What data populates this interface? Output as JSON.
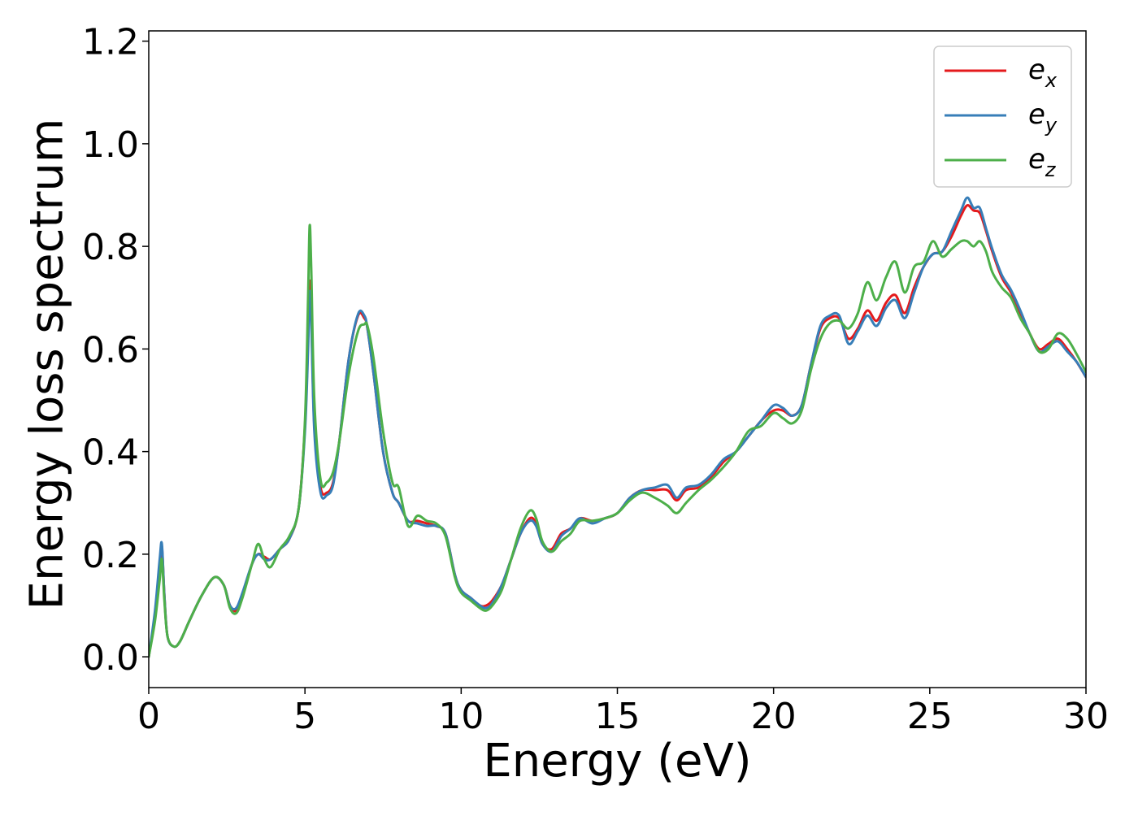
{
  "chart_data": {
    "type": "line",
    "title": "",
    "xlabel": "Energy (eV)",
    "ylabel": "Energy loss spectrum",
    "xlim": [
      0,
      30
    ],
    "ylim": [
      -0.06,
      1.22
    ],
    "xticks": [
      {
        "value": 0,
        "label": "0"
      },
      {
        "value": 5,
        "label": "5"
      },
      {
        "value": 10,
        "label": "10"
      },
      {
        "value": 15,
        "label": "15"
      },
      {
        "value": 20,
        "label": "20"
      },
      {
        "value": 25,
        "label": "25"
      },
      {
        "value": 30,
        "label": "30"
      }
    ],
    "yticks": [
      {
        "value": 0.0,
        "label": "0.0"
      },
      {
        "value": 0.2,
        "label": "0.2"
      },
      {
        "value": 0.4,
        "label": "0.4"
      },
      {
        "value": 0.6,
        "label": "0.6"
      },
      {
        "value": 0.8,
        "label": "0.8"
      },
      {
        "value": 1.0,
        "label": "1.0"
      },
      {
        "value": 1.2,
        "label": "1.2"
      }
    ],
    "grid": false,
    "legend_position": "top-right",
    "series": [
      {
        "name": "e_x",
        "base": "e",
        "sub": "x",
        "color": "#e41a1c",
        "x": [
          0,
          0.2,
          0.35,
          0.42,
          0.5,
          0.6,
          0.8,
          1.0,
          1.3,
          1.7,
          2.1,
          2.4,
          2.6,
          2.8,
          3.0,
          3.3,
          3.5,
          3.7,
          3.9,
          4.2,
          4.5,
          4.8,
          5.0,
          5.1,
          5.15,
          5.2,
          5.3,
          5.5,
          5.7,
          5.9,
          6.1,
          6.4,
          6.7,
          6.9,
          7.0,
          7.2,
          7.5,
          7.8,
          8.0,
          8.3,
          8.6,
          8.9,
          9.2,
          9.5,
          9.8,
          10.0,
          10.3,
          10.6,
          10.8,
          11.0,
          11.3,
          11.6,
          11.9,
          12.2,
          12.4,
          12.6,
          12.9,
          13.2,
          13.5,
          13.8,
          14.2,
          14.6,
          15.0,
          15.4,
          15.8,
          16.2,
          16.6,
          16.9,
          17.2,
          17.6,
          18.0,
          18.4,
          18.8,
          19.2,
          19.6,
          20.0,
          20.3,
          20.6,
          20.9,
          21.2,
          21.5,
          21.8,
          22.1,
          22.4,
          22.7,
          23.0,
          23.3,
          23.6,
          23.9,
          24.2,
          24.5,
          24.8,
          25.1,
          25.4,
          25.7,
          26.0,
          26.2,
          26.4,
          26.6,
          26.8,
          27.0,
          27.3,
          27.6,
          27.9,
          28.2,
          28.5,
          28.8,
          29.1,
          29.4,
          29.7,
          30.0
        ],
        "y": [
          0.0,
          0.08,
          0.18,
          0.215,
          0.12,
          0.04,
          0.02,
          0.03,
          0.07,
          0.12,
          0.155,
          0.14,
          0.1,
          0.09,
          0.12,
          0.18,
          0.2,
          0.195,
          0.19,
          0.21,
          0.23,
          0.29,
          0.45,
          0.62,
          0.73,
          0.68,
          0.45,
          0.33,
          0.32,
          0.34,
          0.42,
          0.58,
          0.665,
          0.66,
          0.64,
          0.55,
          0.4,
          0.32,
          0.3,
          0.265,
          0.265,
          0.26,
          0.255,
          0.24,
          0.16,
          0.13,
          0.115,
          0.1,
          0.1,
          0.11,
          0.14,
          0.19,
          0.24,
          0.27,
          0.26,
          0.22,
          0.21,
          0.24,
          0.25,
          0.27,
          0.265,
          0.27,
          0.28,
          0.31,
          0.325,
          0.325,
          0.325,
          0.305,
          0.325,
          0.33,
          0.35,
          0.38,
          0.4,
          0.43,
          0.46,
          0.48,
          0.48,
          0.47,
          0.49,
          0.57,
          0.64,
          0.66,
          0.66,
          0.62,
          0.64,
          0.675,
          0.655,
          0.69,
          0.705,
          0.67,
          0.72,
          0.76,
          0.785,
          0.79,
          0.82,
          0.86,
          0.88,
          0.87,
          0.865,
          0.83,
          0.79,
          0.74,
          0.71,
          0.67,
          0.63,
          0.6,
          0.61,
          0.62,
          0.6,
          0.575,
          0.545
        ]
      },
      {
        "name": "e_y",
        "base": "e",
        "sub": "y",
        "color": "#377eb8",
        "x": [
          0,
          0.2,
          0.35,
          0.42,
          0.5,
          0.6,
          0.8,
          1.0,
          1.3,
          1.7,
          2.1,
          2.4,
          2.6,
          2.8,
          3.0,
          3.3,
          3.5,
          3.7,
          3.9,
          4.2,
          4.5,
          4.8,
          5.0,
          5.1,
          5.15,
          5.2,
          5.3,
          5.5,
          5.7,
          5.9,
          6.1,
          6.4,
          6.7,
          6.9,
          7.0,
          7.2,
          7.5,
          7.8,
          8.0,
          8.3,
          8.6,
          8.9,
          9.2,
          9.5,
          9.8,
          10.0,
          10.3,
          10.6,
          10.8,
          11.0,
          11.3,
          11.6,
          11.9,
          12.2,
          12.4,
          12.6,
          12.9,
          13.2,
          13.5,
          13.8,
          14.2,
          14.6,
          15.0,
          15.4,
          15.8,
          16.2,
          16.6,
          16.9,
          17.2,
          17.6,
          18.0,
          18.4,
          18.8,
          19.2,
          19.6,
          20.0,
          20.3,
          20.6,
          20.9,
          21.2,
          21.5,
          21.8,
          22.1,
          22.4,
          22.7,
          23.0,
          23.3,
          23.6,
          23.9,
          24.2,
          24.5,
          24.8,
          25.1,
          25.4,
          25.7,
          26.0,
          26.2,
          26.4,
          26.6,
          26.8,
          27.0,
          27.3,
          27.6,
          27.9,
          28.2,
          28.5,
          28.8,
          29.1,
          29.4,
          29.7,
          30.0
        ],
        "y": [
          0.0,
          0.09,
          0.19,
          0.22,
          0.12,
          0.04,
          0.02,
          0.03,
          0.07,
          0.12,
          0.155,
          0.14,
          0.1,
          0.095,
          0.125,
          0.18,
          0.2,
          0.19,
          0.19,
          0.21,
          0.23,
          0.29,
          0.44,
          0.6,
          0.71,
          0.66,
          0.44,
          0.32,
          0.315,
          0.335,
          0.42,
          0.58,
          0.668,
          0.665,
          0.64,
          0.55,
          0.4,
          0.32,
          0.3,
          0.265,
          0.26,
          0.255,
          0.255,
          0.24,
          0.16,
          0.13,
          0.115,
          0.1,
          0.095,
          0.105,
          0.14,
          0.19,
          0.24,
          0.265,
          0.255,
          0.22,
          0.205,
          0.235,
          0.25,
          0.27,
          0.26,
          0.27,
          0.28,
          0.31,
          0.325,
          0.33,
          0.335,
          0.31,
          0.33,
          0.335,
          0.355,
          0.385,
          0.4,
          0.43,
          0.46,
          0.49,
          0.485,
          0.47,
          0.49,
          0.57,
          0.645,
          0.665,
          0.665,
          0.61,
          0.635,
          0.665,
          0.645,
          0.68,
          0.695,
          0.66,
          0.71,
          0.76,
          0.785,
          0.79,
          0.83,
          0.87,
          0.895,
          0.875,
          0.875,
          0.835,
          0.795,
          0.745,
          0.715,
          0.675,
          0.63,
          0.595,
          0.605,
          0.615,
          0.595,
          0.575,
          0.545
        ]
      },
      {
        "name": "e_z",
        "base": "e",
        "sub": "z",
        "color": "#4daf4a",
        "x": [
          0,
          0.2,
          0.35,
          0.42,
          0.5,
          0.6,
          0.8,
          1.0,
          1.3,
          1.7,
          2.1,
          2.4,
          2.6,
          2.8,
          3.0,
          3.3,
          3.5,
          3.7,
          3.9,
          4.2,
          4.5,
          4.8,
          5.0,
          5.1,
          5.15,
          5.2,
          5.3,
          5.5,
          5.7,
          5.9,
          6.1,
          6.4,
          6.7,
          6.9,
          7.0,
          7.2,
          7.5,
          7.8,
          8.0,
          8.3,
          8.6,
          8.9,
          9.2,
          9.5,
          9.8,
          10.0,
          10.3,
          10.6,
          10.8,
          11.0,
          11.3,
          11.6,
          11.9,
          12.2,
          12.4,
          12.6,
          12.9,
          13.2,
          13.5,
          13.8,
          14.2,
          14.6,
          15.0,
          15.4,
          15.8,
          16.2,
          16.6,
          16.9,
          17.2,
          17.6,
          18.0,
          18.4,
          18.8,
          19.2,
          19.6,
          20.0,
          20.3,
          20.6,
          20.9,
          21.2,
          21.5,
          21.8,
          22.1,
          22.4,
          22.7,
          23.0,
          23.3,
          23.6,
          23.9,
          24.2,
          24.5,
          24.8,
          25.1,
          25.4,
          25.7,
          26.0,
          26.2,
          26.4,
          26.6,
          26.8,
          27.0,
          27.3,
          27.6,
          27.9,
          28.2,
          28.5,
          28.8,
          29.1,
          29.4,
          29.7,
          30.0
        ],
        "y": [
          0.0,
          0.07,
          0.15,
          0.19,
          0.11,
          0.04,
          0.02,
          0.03,
          0.07,
          0.12,
          0.155,
          0.14,
          0.095,
          0.085,
          0.115,
          0.18,
          0.22,
          0.19,
          0.175,
          0.21,
          0.235,
          0.29,
          0.46,
          0.7,
          0.84,
          0.76,
          0.5,
          0.345,
          0.34,
          0.36,
          0.42,
          0.55,
          0.635,
          0.648,
          0.645,
          0.58,
          0.44,
          0.34,
          0.33,
          0.255,
          0.275,
          0.265,
          0.26,
          0.235,
          0.155,
          0.125,
          0.11,
          0.095,
          0.09,
          0.1,
          0.13,
          0.19,
          0.25,
          0.285,
          0.27,
          0.225,
          0.205,
          0.225,
          0.24,
          0.265,
          0.265,
          0.27,
          0.28,
          0.305,
          0.32,
          0.31,
          0.295,
          0.28,
          0.3,
          0.325,
          0.345,
          0.37,
          0.4,
          0.44,
          0.45,
          0.475,
          0.465,
          0.455,
          0.48,
          0.56,
          0.62,
          0.65,
          0.655,
          0.64,
          0.67,
          0.73,
          0.695,
          0.74,
          0.77,
          0.71,
          0.76,
          0.77,
          0.81,
          0.78,
          0.795,
          0.81,
          0.81,
          0.8,
          0.81,
          0.79,
          0.75,
          0.72,
          0.7,
          0.66,
          0.63,
          0.595,
          0.6,
          0.63,
          0.62,
          0.59,
          0.555
        ]
      }
    ]
  }
}
